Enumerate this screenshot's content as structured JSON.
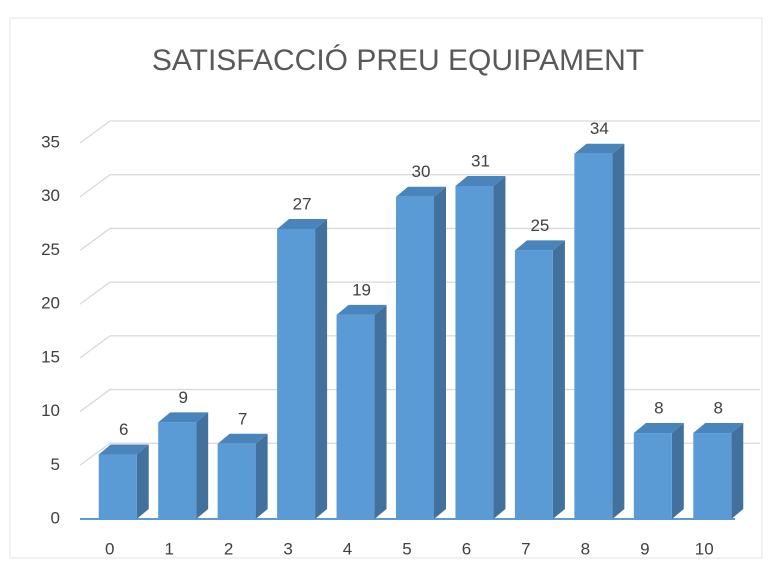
{
  "chart_data": {
    "type": "bar3d",
    "title": "SATISFACCIÓ PREU EQUIPAMENT",
    "categories": [
      "0",
      "1",
      "2",
      "3",
      "4",
      "5",
      "6",
      "7",
      "8",
      "9",
      "10"
    ],
    "values": [
      6,
      9,
      7,
      27,
      19,
      30,
      31,
      25,
      34,
      8,
      8
    ],
    "color": "#5b9bd5",
    "ylim": [
      0,
      35
    ],
    "yticks": [
      0,
      5,
      10,
      15,
      20,
      25,
      30,
      35
    ],
    "grid": true
  }
}
